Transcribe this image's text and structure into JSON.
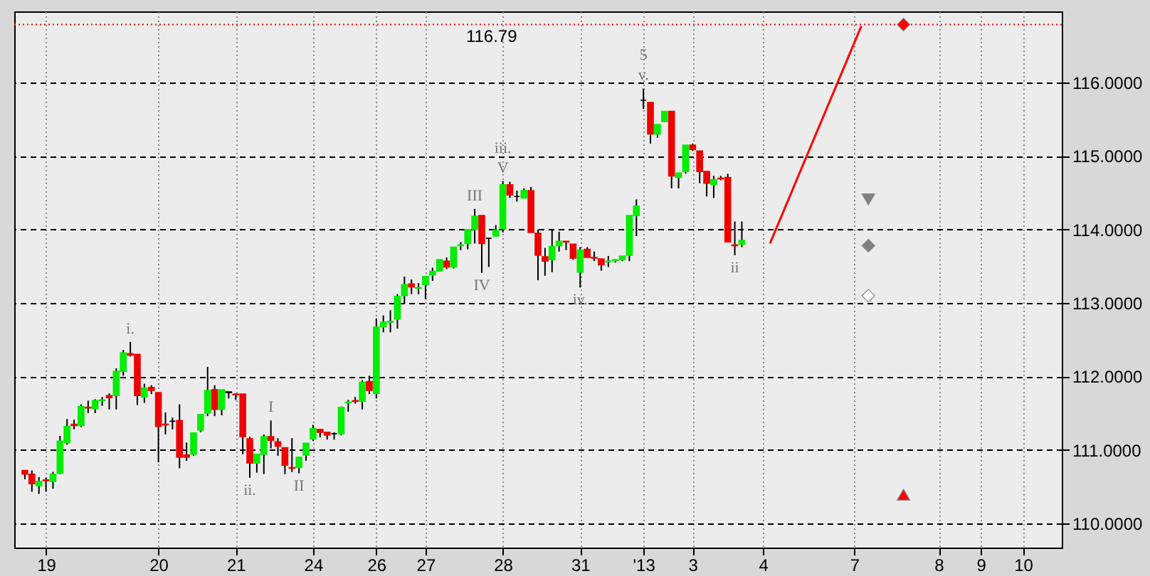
{
  "chart_data": {
    "type": "candlestick",
    "categories": [
      null,
      null,
      null,
      "19",
      null,
      null,
      null,
      null,
      null,
      null,
      null,
      null,
      null,
      null,
      null,
      null,
      null,
      null,
      null,
      "20",
      null,
      null,
      null,
      null,
      null,
      null,
      null,
      null,
      null,
      null,
      "21",
      null,
      null,
      null,
      null,
      null,
      null,
      null,
      null,
      null,
      null,
      "24",
      null,
      null,
      null,
      null,
      null,
      null,
      null,
      null,
      "26",
      null,
      null,
      null,
      null,
      null,
      null,
      "27",
      null,
      null,
      null,
      null,
      null,
      null,
      null,
      null,
      null,
      null,
      "28",
      null,
      null,
      null,
      null,
      null,
      null,
      null,
      null,
      null,
      null,
      "31",
      null,
      null,
      null,
      null,
      null,
      null,
      null,
      null,
      "'13",
      null,
      null,
      null,
      null,
      null,
      null,
      "3",
      null,
      null,
      null,
      null,
      null,
      null,
      null,
      null,
      null,
      "4",
      null,
      null,
      null,
      null,
      null,
      null,
      null,
      null,
      null,
      null,
      null,
      null,
      "7",
      null,
      null,
      null,
      null,
      null,
      null,
      null,
      null,
      null,
      null,
      null,
      "8",
      null,
      null,
      null,
      null,
      null,
      "9",
      null,
      null,
      null,
      null,
      null,
      "10",
      null,
      null,
      null,
      null
    ],
    "ohlc": [
      [
        110.72,
        110.72,
        110.6,
        110.67
      ],
      [
        110.67,
        110.72,
        110.43,
        110.54
      ],
      [
        110.51,
        110.63,
        110.4,
        110.57
      ],
      [
        110.59,
        110.62,
        110.43,
        110.58
      ],
      [
        110.57,
        110.7,
        110.47,
        110.67
      ],
      [
        110.68,
        111.19,
        110.67,
        111.12
      ],
      [
        111.1,
        111.42,
        111.07,
        111.32
      ],
      [
        111.35,
        111.41,
        111.28,
        111.33
      ],
      [
        111.33,
        111.62,
        111.31,
        111.59
      ],
      [
        111.58,
        111.67,
        111.5,
        111.57
      ],
      [
        111.56,
        111.69,
        111.5,
        111.67
      ],
      [
        111.67,
        111.72,
        111.6,
        111.68
      ],
      [
        111.74,
        111.77,
        111.55,
        111.71
      ],
      [
        111.74,
        112.11,
        111.55,
        112.07
      ],
      [
        112.07,
        112.36,
        112.01,
        112.32
      ],
      [
        112.31,
        112.47,
        112.27,
        112.29
      ],
      [
        112.3,
        112.3,
        111.61,
        111.74
      ],
      [
        111.72,
        111.9,
        111.64,
        111.84
      ],
      [
        111.85,
        111.88,
        111.76,
        111.81
      ],
      [
        111.78,
        111.78,
        110.83,
        111.32
      ],
      [
        111.35,
        111.51,
        111.21,
        111.34
      ],
      [
        111.39,
        111.44,
        111.28,
        111.39
      ],
      [
        111.4,
        111.62,
        110.75,
        110.9
      ],
      [
        110.93,
        111.1,
        110.85,
        110.9
      ],
      [
        110.94,
        111.23,
        110.92,
        111.23
      ],
      [
        111.27,
        111.48,
        111.24,
        111.48
      ],
      [
        111.5,
        112.13,
        111.46,
        111.81
      ],
      [
        111.82,
        111.88,
        111.46,
        111.55
      ],
      [
        111.55,
        111.82,
        111.47,
        111.82
      ],
      [
        111.79,
        111.79,
        111.7,
        111.78
      ],
      [
        111.76,
        111.77,
        111.68,
        111.75
      ],
      [
        111.76,
        111.76,
        110.94,
        111.18
      ],
      [
        111.15,
        111.18,
        110.62,
        110.82
      ],
      [
        110.82,
        110.94,
        110.69,
        110.94
      ],
      [
        110.94,
        111.21,
        110.67,
        111.18
      ],
      [
        111.18,
        111.4,
        111.02,
        111.13
      ],
      [
        111.11,
        111.16,
        110.92,
        111.05
      ],
      [
        111.03,
        111.03,
        110.67,
        110.79
      ],
      [
        110.76,
        111.16,
        110.7,
        110.75
      ],
      [
        110.76,
        110.9,
        110.68,
        110.9
      ],
      [
        110.93,
        111.09,
        110.85,
        111.09
      ],
      [
        111.15,
        111.34,
        111.12,
        111.29
      ],
      [
        111.28,
        111.28,
        111.17,
        111.24
      ],
      [
        111.24,
        111.24,
        111.14,
        111.2
      ],
      [
        111.22,
        111.24,
        111.14,
        111.22
      ],
      [
        111.22,
        111.59,
        111.2,
        111.58
      ],
      [
        111.64,
        111.68,
        111.52,
        111.65
      ],
      [
        111.67,
        111.72,
        111.63,
        111.66
      ],
      [
        111.66,
        111.95,
        111.55,
        111.92
      ],
      [
        111.93,
        112.01,
        111.76,
        111.81
      ],
      [
        111.77,
        112.79,
        111.7,
        112.67
      ],
      [
        112.68,
        112.83,
        112.6,
        112.74
      ],
      [
        112.74,
        112.9,
        112.6,
        112.75
      ],
      [
        112.78,
        113.12,
        112.65,
        113.09
      ],
      [
        113.1,
        113.36,
        112.99,
        113.25
      ],
      [
        113.26,
        113.32,
        113.12,
        113.22
      ],
      [
        113.2,
        113.27,
        113.12,
        113.21
      ],
      [
        113.25,
        113.36,
        113.05,
        113.36
      ],
      [
        113.38,
        113.48,
        113.3,
        113.43
      ],
      [
        113.44,
        113.59,
        113.43,
        113.59
      ],
      [
        113.57,
        113.62,
        113.46,
        113.49
      ],
      [
        113.49,
        113.76,
        113.47,
        113.76
      ],
      [
        113.78,
        113.83,
        113.72,
        113.79
      ],
      [
        113.81,
        114.0,
        113.73,
        114.0
      ],
      [
        114.0,
        114.28,
        113.81,
        114.18
      ],
      [
        114.19,
        114.19,
        113.41,
        113.81
      ],
      [
        113.88,
        113.88,
        113.49,
        113.88
      ],
      [
        113.91,
        114.06,
        113.91,
        113.99
      ],
      [
        114.01,
        114.66,
        113.96,
        114.61
      ],
      [
        114.61,
        114.65,
        114.43,
        114.47
      ],
      [
        114.45,
        114.53,
        114.38,
        114.45
      ],
      [
        114.43,
        114.56,
        114.43,
        114.53
      ],
      [
        114.53,
        114.58,
        113.96,
        113.96
      ],
      [
        113.95,
        114.0,
        113.31,
        113.65
      ],
      [
        113.63,
        113.75,
        113.37,
        113.57
      ],
      [
        113.59,
        113.99,
        113.42,
        113.77
      ],
      [
        113.78,
        113.97,
        113.7,
        113.84
      ],
      [
        113.84,
        113.84,
        113.72,
        113.83
      ],
      [
        113.8,
        113.8,
        113.59,
        113.61
      ],
      [
        113.42,
        113.76,
        113.21,
        113.72
      ],
      [
        113.73,
        113.76,
        113.62,
        113.62
      ],
      [
        113.62,
        113.7,
        113.57,
        113.61
      ],
      [
        113.6,
        113.6,
        113.44,
        113.52
      ],
      [
        113.56,
        113.64,
        113.49,
        113.57
      ],
      [
        113.58,
        113.59,
        113.55,
        113.59
      ],
      [
        113.59,
        113.64,
        113.57,
        113.64
      ],
      [
        113.65,
        114.19,
        113.57,
        114.19
      ],
      [
        114.19,
        114.41,
        113.91,
        114.32
      ],
      [
        115.76,
        115.92,
        115.64,
        115.76
      ],
      [
        115.73,
        115.73,
        115.17,
        115.3
      ],
      [
        115.3,
        115.43,
        115.25,
        115.43
      ],
      [
        115.47,
        115.61,
        115.47,
        115.61
      ],
      [
        115.61,
        115.61,
        114.56,
        114.73
      ],
      [
        114.71,
        114.77,
        114.56,
        114.77
      ],
      [
        114.79,
        115.15,
        114.76,
        115.15
      ],
      [
        115.15,
        115.17,
        115.07,
        115.09
      ],
      [
        115.07,
        115.07,
        114.63,
        114.79
      ],
      [
        114.79,
        114.79,
        114.45,
        114.63
      ],
      [
        114.61,
        114.73,
        114.43,
        114.68
      ],
      [
        114.7,
        114.73,
        114.67,
        114.69
      ],
      [
        114.71,
        114.76,
        113.83,
        113.83
      ],
      [
        113.79,
        114.11,
        113.65,
        113.78
      ],
      [
        113.8,
        114.11,
        113.76,
        113.85
      ],
      null,
      null,
      null,
      null,
      null,
      null,
      null,
      null,
      null,
      null,
      null,
      null,
      null,
      null,
      null,
      null,
      null,
      null,
      null,
      null,
      null,
      null,
      null,
      null,
      null,
      null,
      null,
      null,
      null,
      null,
      null,
      null,
      null,
      null,
      null,
      null,
      null,
      null,
      null,
      null,
      null,
      null,
      null,
      null
    ],
    "colors": [
      "#ee0000",
      "#ee0000",
      "#00ee00",
      "#ee0000",
      "#00ee00",
      "#00ee00",
      "#00ee00",
      "#ee0000",
      "#00ee00",
      "#ee0000",
      "#00ee00",
      "#00ee00",
      "#ee0000",
      "#00ee00",
      "#00ee00",
      "#ee0000",
      "#ee0000",
      "#00ee00",
      "#ee0000",
      "#ee0000",
      "#ee0000",
      "#000000",
      "#ee0000",
      "#ee0000",
      "#00ee00",
      "#00ee00",
      "#00ee00",
      "#ee0000",
      "#00ee00",
      "#000000",
      "#ee0000",
      "#ee0000",
      "#ee0000",
      "#00ee00",
      "#00ee00",
      "#ee0000",
      "#ee0000",
      "#ee0000",
      "#ee0000",
      "#00ee00",
      "#00ee00",
      "#00ee00",
      "#ee0000",
      "#ee0000",
      "#000000",
      "#00ee00",
      "#00ee00",
      "#ee0000",
      "#00ee00",
      "#ee0000",
      "#00ee00",
      "#00ee00",
      "#00ee00",
      "#00ee00",
      "#00ee00",
      "#ee0000",
      "#00ee00",
      "#00ee00",
      "#00ee00",
      "#00ee00",
      "#ee0000",
      "#00ee00",
      "#00ee00",
      "#00ee00",
      "#00ee00",
      "#ee0000",
      "#000000",
      "#00ee00",
      "#00ee00",
      "#ee0000",
      "#000000",
      "#00ee00",
      "#ee0000",
      "#ee0000",
      "#ee0000",
      "#00ee00",
      "#00ee00",
      "#ee0000",
      "#ee0000",
      "#00ee00",
      "#ee0000",
      "#ee0000",
      "#ee0000",
      "#00ee00",
      "#00ee00",
      "#00ee00",
      "#00ee00",
      "#00ee00",
      "#000000",
      "#ee0000",
      "#00ee00",
      "#00ee00",
      "#ee0000",
      "#00ee00",
      "#00ee00",
      "#ee0000",
      "#ee0000",
      "#ee0000",
      "#00ee00",
      "#ee0000",
      "#ee0000",
      "#ee0000",
      "#00ee00",
      null,
      null,
      null,
      null,
      null,
      null,
      null,
      null,
      null,
      null,
      null,
      null,
      null,
      null,
      null,
      null,
      null,
      null,
      null,
      null,
      null,
      null,
      null,
      null,
      null,
      null,
      null,
      null,
      null,
      null,
      null,
      null,
      null,
      null,
      null,
      null,
      null,
      null,
      null,
      null,
      null,
      null,
      null,
      null
    ],
    "series": [
      {
        "type": "line",
        "color": "#ff0000",
        "values": [
          null,
          null,
          null,
          null,
          null,
          null,
          null,
          null,
          null,
          null,
          null,
          null,
          null,
          null,
          null,
          null,
          null,
          null,
          null,
          null,
          null,
          null,
          null,
          null,
          null,
          null,
          null,
          null,
          null,
          null,
          null,
          null,
          null,
          null,
          null,
          null,
          null,
          null,
          null,
          null,
          null,
          null,
          null,
          null,
          null,
          null,
          null,
          null,
          null,
          null,
          null,
          null,
          null,
          null,
          null,
          null,
          null,
          null,
          null,
          null,
          null,
          null,
          null,
          null,
          null,
          null,
          null,
          null,
          null,
          null,
          null,
          null,
          null,
          null,
          null,
          null,
          null,
          null,
          null,
          null,
          null,
          null,
          null,
          null,
          null,
          null,
          null,
          null,
          null,
          null,
          null,
          null,
          null,
          null,
          null,
          null,
          null,
          null,
          null,
          null,
          null,
          null,
          null,
          null,
          null,
          null,
          113.81,
          null,
          null,
          null,
          null,
          null,
          null,
          null,
          null,
          null,
          null,
          null,
          null,
          116.77,
          null,
          null,
          null,
          null,
          null,
          null,
          null,
          null,
          null,
          null,
          null,
          null,
          null,
          null,
          null,
          null,
          null,
          null,
          null,
          null,
          null,
          null,
          null,
          null,
          null,
          null,
          null
        ]
      },
      {
        "type": "scatter",
        "marker": "diamond",
        "color": "#ff0000",
        "values": [
          null,
          null,
          null,
          null,
          null,
          null,
          null,
          null,
          null,
          null,
          null,
          null,
          null,
          null,
          null,
          null,
          null,
          null,
          null,
          null,
          null,
          null,
          null,
          null,
          null,
          null,
          null,
          null,
          null,
          null,
          null,
          null,
          null,
          null,
          null,
          null,
          null,
          null,
          null,
          null,
          null,
          null,
          null,
          null,
          null,
          null,
          null,
          null,
          null,
          null,
          null,
          null,
          null,
          null,
          null,
          null,
          null,
          null,
          null,
          null,
          null,
          null,
          null,
          null,
          null,
          null,
          null,
          null,
          null,
          null,
          null,
          null,
          null,
          null,
          null,
          null,
          null,
          null,
          null,
          null,
          null,
          null,
          null,
          null,
          null,
          null,
          null,
          null,
          null,
          null,
          null,
          null,
          null,
          null,
          null,
          null,
          null,
          null,
          null,
          null,
          null,
          null,
          null,
          null,
          null,
          null,
          null,
          null,
          null,
          null,
          null,
          null,
          null,
          null,
          null,
          null,
          null,
          null,
          null,
          null,
          null,
          null,
          null,
          null,
          null,
          116.79,
          null,
          null,
          null,
          null,
          null,
          null,
          null,
          null,
          null,
          null,
          null,
          null,
          null,
          null,
          null,
          null,
          null,
          null,
          null,
          null,
          null
        ]
      },
      {
        "type": "scatter",
        "marker": "triangle-down",
        "color": "#808080",
        "values": [
          null,
          null,
          null,
          null,
          null,
          null,
          null,
          null,
          null,
          null,
          null,
          null,
          null,
          null,
          null,
          null,
          null,
          null,
          null,
          null,
          null,
          null,
          null,
          null,
          null,
          null,
          null,
          null,
          null,
          null,
          null,
          null,
          null,
          null,
          null,
          null,
          null,
          null,
          null,
          null,
          null,
          null,
          null,
          null,
          null,
          null,
          null,
          null,
          null,
          null,
          null,
          null,
          null,
          null,
          null,
          null,
          null,
          null,
          null,
          null,
          null,
          null,
          null,
          null,
          null,
          null,
          null,
          null,
          null,
          null,
          null,
          null,
          null,
          null,
          null,
          null,
          null,
          null,
          null,
          null,
          null,
          null,
          null,
          null,
          null,
          null,
          null,
          null,
          null,
          null,
          null,
          null,
          null,
          null,
          null,
          null,
          null,
          null,
          null,
          null,
          null,
          null,
          null,
          null,
          null,
          null,
          null,
          null,
          null,
          null,
          null,
          null,
          null,
          null,
          null,
          null,
          null,
          null,
          null,
          null,
          114.41,
          null,
          null,
          null,
          null,
          null,
          null,
          null,
          null,
          null,
          null,
          null,
          null,
          null,
          null,
          null,
          null,
          null,
          null,
          null,
          null,
          null,
          null,
          null,
          null,
          null,
          null
        ]
      },
      {
        "type": "scatter",
        "marker": "diamond",
        "color": "#808080",
        "values": [
          null,
          null,
          null,
          null,
          null,
          null,
          null,
          null,
          null,
          null,
          null,
          null,
          null,
          null,
          null,
          null,
          null,
          null,
          null,
          null,
          null,
          null,
          null,
          null,
          null,
          null,
          null,
          null,
          null,
          null,
          null,
          null,
          null,
          null,
          null,
          null,
          null,
          null,
          null,
          null,
          null,
          null,
          null,
          null,
          null,
          null,
          null,
          null,
          null,
          null,
          null,
          null,
          null,
          null,
          null,
          null,
          null,
          null,
          null,
          null,
          null,
          null,
          null,
          null,
          null,
          null,
          null,
          null,
          null,
          null,
          null,
          null,
          null,
          null,
          null,
          null,
          null,
          null,
          null,
          null,
          null,
          null,
          null,
          null,
          null,
          null,
          null,
          null,
          null,
          null,
          null,
          null,
          null,
          null,
          null,
          null,
          null,
          null,
          null,
          null,
          null,
          null,
          null,
          null,
          null,
          null,
          null,
          null,
          null,
          null,
          null,
          null,
          null,
          null,
          null,
          null,
          null,
          null,
          null,
          null,
          113.78,
          null,
          null,
          null,
          null,
          null,
          null,
          null,
          null,
          null,
          null,
          null,
          null,
          null,
          null,
          null,
          null,
          null,
          null,
          null,
          null,
          null,
          null,
          null,
          null,
          null,
          null
        ]
      },
      {
        "type": "scatter",
        "marker": "diamond",
        "color": "#ffffff",
        "values": [
          null,
          null,
          null,
          null,
          null,
          null,
          null,
          null,
          null,
          null,
          null,
          null,
          null,
          null,
          null,
          null,
          null,
          null,
          null,
          null,
          null,
          null,
          null,
          null,
          null,
          null,
          null,
          null,
          null,
          null,
          null,
          null,
          null,
          null,
          null,
          null,
          null,
          null,
          null,
          null,
          null,
          null,
          null,
          null,
          null,
          null,
          null,
          null,
          null,
          null,
          null,
          null,
          null,
          null,
          null,
          null,
          null,
          null,
          null,
          null,
          null,
          null,
          null,
          null,
          null,
          null,
          null,
          null,
          null,
          null,
          null,
          null,
          null,
          null,
          null,
          null,
          null,
          null,
          null,
          null,
          null,
          null,
          null,
          null,
          null,
          null,
          null,
          null,
          null,
          null,
          null,
          null,
          null,
          null,
          null,
          null,
          null,
          null,
          null,
          null,
          null,
          null,
          null,
          null,
          null,
          null,
          null,
          null,
          null,
          null,
          null,
          null,
          null,
          null,
          null,
          null,
          null,
          null,
          null,
          null,
          113.1,
          null,
          null,
          null,
          null,
          null,
          null,
          null,
          null,
          null,
          null,
          null,
          null,
          null,
          null,
          null,
          null,
          null,
          null,
          null,
          null,
          null,
          null,
          null,
          null,
          null,
          null
        ]
      },
      {
        "type": "scatter",
        "marker": "triangle",
        "color": "#ff0000",
        "values": [
          null,
          null,
          null,
          null,
          null,
          null,
          null,
          null,
          null,
          null,
          null,
          null,
          null,
          null,
          null,
          null,
          null,
          null,
          null,
          null,
          null,
          null,
          null,
          null,
          null,
          null,
          null,
          null,
          null,
          null,
          null,
          null,
          null,
          null,
          null,
          null,
          null,
          null,
          null,
          null,
          null,
          null,
          null,
          null,
          null,
          null,
          null,
          null,
          null,
          null,
          null,
          null,
          null,
          null,
          null,
          null,
          null,
          null,
          null,
          null,
          null,
          null,
          null,
          null,
          null,
          null,
          null,
          null,
          null,
          null,
          null,
          null,
          null,
          null,
          null,
          null,
          null,
          null,
          null,
          null,
          null,
          null,
          null,
          null,
          null,
          null,
          null,
          null,
          null,
          null,
          null,
          null,
          null,
          null,
          null,
          null,
          null,
          null,
          null,
          null,
          null,
          null,
          null,
          null,
          null,
          null,
          null,
          null,
          null,
          null,
          null,
          null,
          null,
          null,
          null,
          null,
          null,
          null,
          null,
          null,
          null,
          null,
          null,
          null,
          null,
          110.39,
          null,
          null,
          null,
          null,
          null,
          null,
          null,
          null,
          null,
          null,
          null,
          null,
          null,
          null,
          null,
          null,
          null,
          null,
          null,
          null,
          null
        ]
      }
    ],
    "ref_lines": [
      {
        "axis": "y",
        "value": 116.79,
        "label": "116.79",
        "color": "#ff0000",
        "line_style": "dotted"
      }
    ],
    "annotations": [
      {
        "text": "i.",
        "y": 112.47
      },
      {
        "text": "ii.",
        "y": 110.62
      },
      {
        "text": "V",
        "y": 114.66
      },
      {
        "text": "iii.",
        "y": 114.66
      },
      {
        "text": "iv.",
        "y": 113.21
      },
      {
        "text": "v.",
        "y": 115.92
      },
      {
        "text": "5",
        "y": 115.92
      },
      {
        "text": "I",
        "y": 111.4
      },
      {
        "text": "II",
        "y": 110.68
      },
      {
        "text": "III",
        "y": 114.28
      },
      {
        "text": "IV",
        "y": 113.41
      },
      {
        "text": "ii",
        "y": 113.65
      }
    ],
    "ylim": [
      109.67,
      116.97
    ],
    "yticks": [
      {
        "value": 110,
        "label": "110.0000"
      },
      {
        "value": 111,
        "label": "111.0000"
      },
      {
        "value": 112,
        "label": "112.0000"
      },
      {
        "value": 113,
        "label": "113.0000"
      },
      {
        "value": 114,
        "label": "114.0000"
      },
      {
        "value": 115,
        "label": "115.0000"
      },
      {
        "value": 116,
        "label": "116.0000"
      }
    ],
    "grid": true
  }
}
